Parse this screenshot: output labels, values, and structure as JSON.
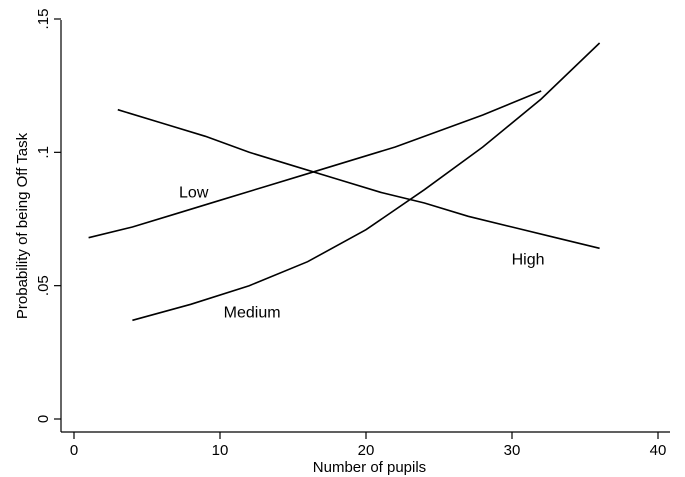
{
  "chart_data": {
    "type": "line",
    "title": "",
    "xlabel": "Number of pupils",
    "ylabel": "Probability of being Off Task",
    "xlim": [
      0,
      40
    ],
    "ylim": [
      0,
      0.15
    ],
    "x_ticks": [
      0,
      10,
      20,
      30,
      40
    ],
    "x_tick_labels": [
      "0",
      "10",
      "20",
      "30",
      "40"
    ],
    "y_ticks": [
      0,
      0.05,
      0.1,
      0.15
    ],
    "y_tick_labels": [
      "0",
      ".05",
      ".1",
      ".15"
    ],
    "grid": false,
    "legend": "none",
    "series": [
      {
        "name": "Low",
        "x": [
          1,
          4,
          7,
          10,
          13,
          16,
          19,
          22,
          25,
          28,
          32
        ],
        "y": [
          0.068,
          0.072,
          0.077,
          0.082,
          0.087,
          0.092,
          0.097,
          0.102,
          0.108,
          0.114,
          0.123
        ]
      },
      {
        "name": "Medium",
        "x": [
          4,
          8,
          12,
          16,
          20,
          24,
          28,
          32,
          36
        ],
        "y": [
          0.037,
          0.043,
          0.05,
          0.059,
          0.071,
          0.086,
          0.102,
          0.12,
          0.141
        ]
      },
      {
        "name": "High",
        "x": [
          3,
          6,
          9,
          12,
          15,
          18,
          21,
          24,
          27,
          30,
          33,
          36
        ],
        "y": [
          0.116,
          0.111,
          0.106,
          0.1,
          0.095,
          0.09,
          0.085,
          0.081,
          0.076,
          0.072,
          0.068,
          0.064
        ]
      }
    ],
    "annotations": [
      {
        "text": "Low",
        "x": 8.2,
        "y": 0.083
      },
      {
        "text": "Medium",
        "x": 12.2,
        "y": 0.038
      },
      {
        "text": "High",
        "x": 31.1,
        "y": 0.058
      }
    ]
  }
}
